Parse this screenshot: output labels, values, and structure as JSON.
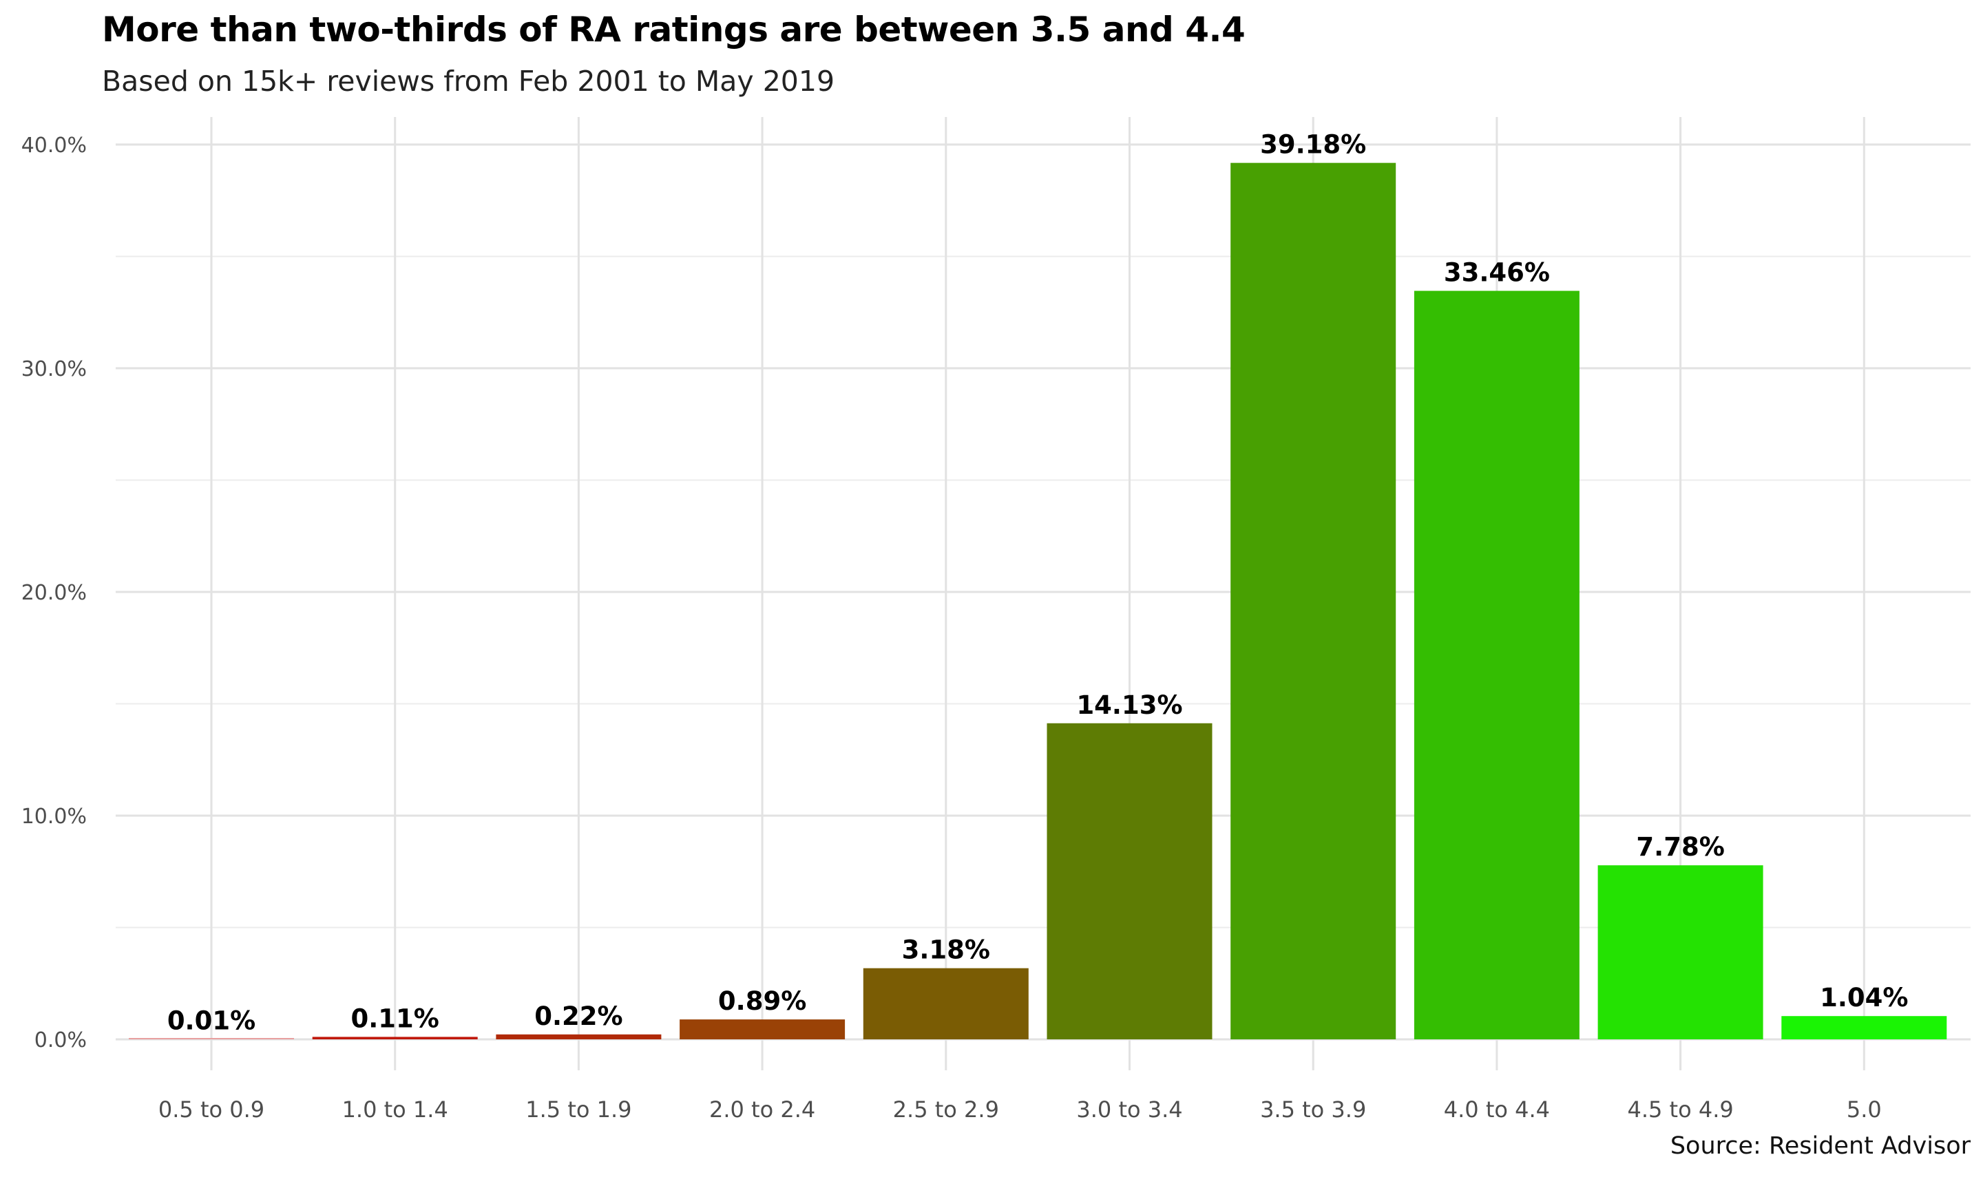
{
  "chart_data": {
    "type": "bar",
    "title": "More than two-thirds of RA ratings are between 3.5 and 4.4",
    "subtitle": "Based on 15k+ reviews from Feb 2001 to May 2019",
    "caption": "Source: Resident Advisor",
    "xlabel": "",
    "ylabel": "",
    "categories": [
      "0.5 to 0.9",
      "1.0 to 1.4",
      "1.5 to 1.9",
      "2.0 to 2.4",
      "2.5 to 2.9",
      "3.0 to 3.4",
      "3.5 to 3.9",
      "4.0 to 4.4",
      "4.5 to 4.9",
      "5.0"
    ],
    "values": [
      0.01,
      0.11,
      0.22,
      0.89,
      3.18,
      14.13,
      39.18,
      33.46,
      7.78,
      1.04
    ],
    "value_labels": [
      "0.01%",
      "0.11%",
      "0.22%",
      "0.89%",
      "3.18%",
      "14.13%",
      "39.18%",
      "33.46%",
      "7.78%",
      "1.04%"
    ],
    "bar_colors": [
      "#e8a0a0",
      "#c0180a",
      "#b02a08",
      "#9a4206",
      "#7a5c04",
      "#5e7c04",
      "#48a002",
      "#34be02",
      "#24e202",
      "#1af404"
    ],
    "ylim": [
      0,
      40
    ],
    "yticks": [
      0,
      10,
      20,
      30,
      40
    ],
    "ytick_labels": [
      "0.0%",
      "10.0%",
      "20.0%",
      "30.0%",
      "40.0%"
    ],
    "grid": true,
    "legend": "none"
  }
}
